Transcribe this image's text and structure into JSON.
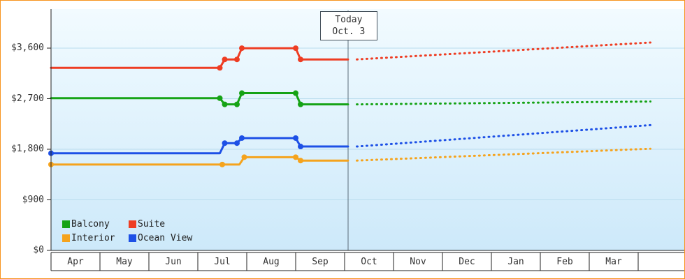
{
  "window": {
    "border_color": "#f7941d",
    "plot_bg_top": "#f2fbff",
    "plot_bg_bottom": "#cde9fa",
    "axis_color": "#222222",
    "text_color": "#333333",
    "grid_color": "#b9dcee",
    "today_line_color": "#5a6b78"
  },
  "today_flag": {
    "line1": "Today",
    "line2": "Oct. 3",
    "month_x": 6.07
  },
  "y_axis": {
    "tick_values": [
      0,
      900,
      1800,
      2700,
      3600
    ],
    "tick_labels": [
      "$0",
      "$900",
      "$1,800",
      "$2,700",
      "$3,600"
    ]
  },
  "x_axis": {
    "months": [
      "Apr",
      "May",
      "Jun",
      "Jul",
      "Aug",
      "Sep",
      "Oct",
      "Nov",
      "Dec",
      "Jan",
      "Feb",
      "Mar"
    ]
  },
  "legend": {
    "rows": [
      [
        {
          "label": "Balcony",
          "color": "#16a316"
        },
        {
          "label": "Suite",
          "color": "#ee3d23"
        }
      ],
      [
        {
          "label": "Interior",
          "color": "#f5a31d"
        },
        {
          "label": "Ocean View",
          "color": "#1d50e6"
        }
      ]
    ]
  },
  "chart_data": {
    "type": "line",
    "title": "",
    "xlabel": "",
    "ylabel": "",
    "y_unit": "USD",
    "ylim": [
      0,
      3900
    ],
    "yticks": [
      0,
      900,
      1800,
      2700,
      3600
    ],
    "x_unit": "month index (0 = Apr 1, 1 = May 1, ... 12 = following Apr)",
    "xticklabels": [
      "Apr",
      "May",
      "Jun",
      "Jul",
      "Aug",
      "Sep",
      "Oct",
      "Nov",
      "Dec",
      "Jan",
      "Feb",
      "Mar"
    ],
    "grid": "horizontal",
    "legend_position": "bottom-left",
    "today": {
      "label": "Oct. 3",
      "x": 6.07
    },
    "note": "solid_points = price history up to today; forecast_points = dotted projection after today",
    "series": [
      {
        "name": "Interior",
        "color": "#f5a31d",
        "solid_points": [
          [
            0,
            1529
          ],
          [
            3.5,
            1529
          ],
          [
            3.85,
            1529
          ],
          [
            3.95,
            1659
          ],
          [
            5.0,
            1659
          ],
          [
            5.1,
            1599
          ],
          [
            6.07,
            1599
          ]
        ],
        "markers": [
          [
            0,
            1529
          ],
          [
            3.5,
            1529
          ],
          [
            3.95,
            1659
          ],
          [
            5.0,
            1659
          ],
          [
            5.1,
            1599
          ]
        ],
        "forecast_points": [
          [
            6.25,
            1599
          ],
          [
            12.25,
            1810
          ]
        ]
      },
      {
        "name": "Ocean View",
        "color": "#1d50e6",
        "solid_points": [
          [
            0,
            1729
          ],
          [
            3.45,
            1729
          ],
          [
            3.55,
            1909
          ],
          [
            3.8,
            1909
          ],
          [
            3.9,
            1999
          ],
          [
            5.0,
            1999
          ],
          [
            5.1,
            1849
          ],
          [
            6.07,
            1849
          ]
        ],
        "markers": [
          [
            0,
            1729
          ],
          [
            3.55,
            1909
          ],
          [
            3.8,
            1909
          ],
          [
            3.9,
            1999
          ],
          [
            5.0,
            1999
          ],
          [
            5.1,
            1849
          ]
        ],
        "forecast_points": [
          [
            6.25,
            1849
          ],
          [
            12.25,
            2230
          ]
        ]
      },
      {
        "name": "Balcony",
        "color": "#16a316",
        "solid_points": [
          [
            0,
            2709
          ],
          [
            3.45,
            2709
          ],
          [
            3.55,
            2599
          ],
          [
            3.8,
            2599
          ],
          [
            3.9,
            2799
          ],
          [
            5.0,
            2799
          ],
          [
            5.1,
            2599
          ],
          [
            6.07,
            2599
          ]
        ],
        "markers": [
          [
            3.45,
            2709
          ],
          [
            3.55,
            2599
          ],
          [
            3.8,
            2599
          ],
          [
            3.9,
            2799
          ],
          [
            5.0,
            2799
          ],
          [
            5.1,
            2599
          ]
        ],
        "forecast_points": [
          [
            6.25,
            2599
          ],
          [
            12.25,
            2650
          ]
        ]
      },
      {
        "name": "Suite",
        "color": "#ee3d23",
        "solid_points": [
          [
            0,
            3249
          ],
          [
            3.45,
            3249
          ],
          [
            3.55,
            3399
          ],
          [
            3.8,
            3399
          ],
          [
            3.9,
            3599
          ],
          [
            5.0,
            3599
          ],
          [
            5.1,
            3399
          ],
          [
            6.07,
            3399
          ]
        ],
        "markers": [
          [
            3.45,
            3249
          ],
          [
            3.55,
            3399
          ],
          [
            3.8,
            3399
          ],
          [
            3.9,
            3599
          ],
          [
            5.0,
            3599
          ],
          [
            5.1,
            3399
          ]
        ],
        "forecast_points": [
          [
            6.25,
            3399
          ],
          [
            12.25,
            3700
          ]
        ]
      }
    ]
  }
}
